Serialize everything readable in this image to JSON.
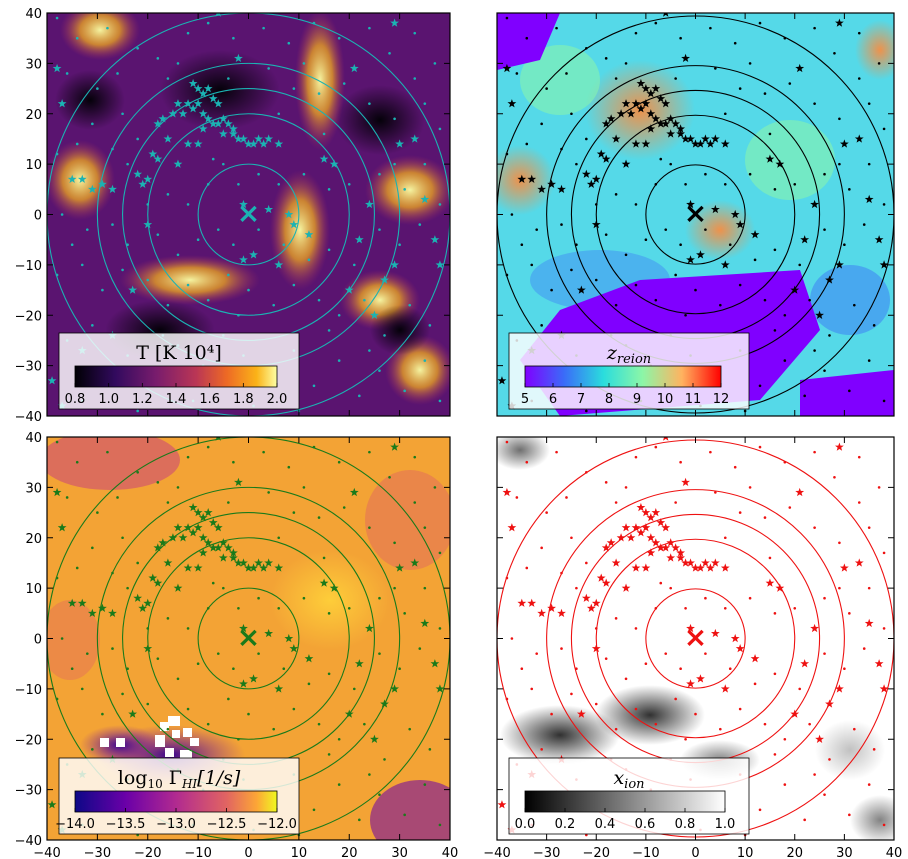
{
  "chart_data": [
    {
      "type": "heatmap",
      "id": "temperature",
      "colormap": "inferno",
      "colorbar": {
        "title": "T [K 10⁴]",
        "ticks": [
          "0.8",
          "1.0",
          "1.2",
          "1.4",
          "1.6",
          "1.8",
          "2.0"
        ],
        "range": [
          0.8,
          2.0
        ]
      },
      "overlay_color": "#1bb3b3",
      "xlim": [
        -40,
        40
      ],
      "ylim": [
        -40,
        40
      ],
      "xticks": [
        "−40",
        "−30",
        "−20",
        "−10",
        "0",
        "10",
        "20",
        "30",
        "40"
      ],
      "yticks": [
        "40",
        "30",
        "20",
        "10",
        "0",
        "−10",
        "−20",
        "−30",
        "−40"
      ],
      "center_marker": {
        "x": 0,
        "y": 0,
        "symbol": "×"
      },
      "circle_radii": [
        10,
        20,
        25,
        30,
        40
      ]
    },
    {
      "type": "heatmap",
      "id": "z_reion",
      "colormap": "rainbow",
      "colorbar": {
        "title": "z_reion",
        "ticks": [
          "5",
          "6",
          "7",
          "8",
          "9",
          "10",
          "11",
          "12"
        ],
        "range": [
          5,
          12
        ]
      },
      "overlay_color": "#000000",
      "xlim": [
        -40,
        40
      ],
      "ylim": [
        -40,
        40
      ],
      "center_marker": {
        "x": 0,
        "y": 0,
        "symbol": "×"
      },
      "circle_radii": [
        10,
        20,
        25,
        30,
        40
      ]
    },
    {
      "type": "heatmap",
      "id": "gamma_HI",
      "colormap": "plasma",
      "colorbar": {
        "title": "log₁₀ Γ_HI [1/s]",
        "ticks": [
          "−14.0",
          "−13.5",
          "−13.0",
          "−12.5",
          "−12.0"
        ],
        "range": [
          -14.0,
          -12.0
        ]
      },
      "overlay_color": "#1a7a1a",
      "xlim": [
        -40,
        40
      ],
      "ylim": [
        -40,
        40
      ],
      "center_marker": {
        "x": 0,
        "y": 0,
        "symbol": "×"
      },
      "circle_radii": [
        10,
        20,
        25,
        30,
        40
      ]
    },
    {
      "type": "heatmap",
      "id": "x_ion",
      "colormap": "gray",
      "colorbar": {
        "title": "x_ion",
        "ticks": [
          "0.0",
          "0.2",
          "0.4",
          "0.6",
          "0.8",
          "1.0"
        ],
        "range": [
          0.0,
          1.0
        ]
      },
      "overlay_color": "#ee1111",
      "xlim": [
        -40,
        40
      ],
      "ylim": [
        -40,
        40
      ],
      "center_marker": {
        "x": 0,
        "y": 0,
        "symbol": "×"
      },
      "circle_radii": [
        10,
        20,
        25,
        30,
        40
      ]
    }
  ],
  "stars": [
    [
      -38,
      29
    ],
    [
      -37,
      22
    ],
    [
      -35,
      7
    ],
    [
      -33,
      7
    ],
    [
      -31,
      5
    ],
    [
      -29,
      6
    ],
    [
      -27,
      5
    ],
    [
      -22,
      8
    ],
    [
      -21,
      6
    ],
    [
      -20,
      7
    ],
    [
      -14,
      10
    ],
    [
      -12,
      14
    ],
    [
      -10,
      14
    ],
    [
      -9,
      17
    ],
    [
      -7,
      18
    ],
    [
      -5,
      16
    ],
    [
      -3,
      17
    ],
    [
      -14,
      22
    ],
    [
      -13,
      20
    ],
    [
      -12,
      22
    ],
    [
      -11,
      21
    ],
    [
      -10,
      22
    ],
    [
      -9,
      20
    ],
    [
      -8,
      19
    ],
    [
      -11,
      26
    ],
    [
      -10,
      25
    ],
    [
      -9,
      24
    ],
    [
      -8,
      25
    ],
    [
      -7,
      23
    ],
    [
      -6,
      22
    ],
    [
      -6,
      18
    ],
    [
      -5,
      19
    ],
    [
      -4,
      18
    ],
    [
      -3,
      16
    ],
    [
      -2,
      15
    ],
    [
      -1,
      15
    ],
    [
      0,
      14
    ],
    [
      1,
      14
    ],
    [
      2,
      15
    ],
    [
      3,
      14
    ],
    [
      4,
      15
    ],
    [
      6,
      14
    ],
    [
      -15,
      20
    ],
    [
      -17,
      19
    ],
    [
      -18,
      18
    ],
    [
      -16,
      15
    ],
    [
      -19,
      12
    ],
    [
      -18,
      11
    ],
    [
      -1,
      2
    ],
    [
      8,
      0
    ],
    [
      4,
      1
    ],
    [
      9,
      -2
    ],
    [
      1,
      -8
    ],
    [
      -1,
      -9
    ],
    [
      6,
      -10
    ],
    [
      12,
      -4
    ],
    [
      15,
      11
    ],
    [
      17,
      10
    ],
    [
      20,
      -15
    ],
    [
      22,
      -5
    ],
    [
      24,
      2
    ],
    [
      25,
      -20
    ],
    [
      27,
      -13
    ],
    [
      29,
      -10
    ],
    [
      30,
      14
    ],
    [
      33,
      15
    ],
    [
      35,
      3
    ],
    [
      37,
      -5
    ],
    [
      38,
      -10
    ],
    [
      -20,
      -2
    ],
    [
      -23,
      -15
    ],
    [
      -27,
      -24
    ],
    [
      -28,
      -31
    ],
    [
      -33,
      -27
    ],
    [
      -39,
      -33
    ],
    [
      -37,
      -38
    ],
    [
      -6,
      40
    ],
    [
      -2,
      31
    ],
    [
      21,
      29
    ],
    [
      29,
      38
    ]
  ],
  "dots": [
    [
      -38,
      39
    ],
    [
      -34,
      35
    ],
    [
      -28,
      37
    ],
    [
      -22,
      33
    ],
    [
      -18,
      31
    ],
    [
      -12,
      36
    ],
    [
      -8,
      38
    ],
    [
      -3,
      35
    ],
    [
      3,
      37
    ],
    [
      8,
      34
    ],
    [
      13,
      38
    ],
    [
      18,
      35
    ],
    [
      24,
      37
    ],
    [
      28,
      32
    ],
    [
      33,
      36
    ],
    [
      37,
      30
    ],
    [
      -36,
      28
    ],
    [
      -30,
      25
    ],
    [
      -25,
      20
    ],
    [
      -22,
      15
    ],
    [
      -16,
      27
    ],
    [
      -4,
      27
    ],
    [
      4,
      29
    ],
    [
      9,
      25
    ],
    [
      14,
      24
    ],
    [
      19,
      26
    ],
    [
      24,
      22
    ],
    [
      29,
      19
    ],
    [
      35,
      22
    ],
    [
      38,
      17
    ],
    [
      -38,
      12
    ],
    [
      -34,
      14
    ],
    [
      -27,
      13
    ],
    [
      -24,
      10
    ],
    [
      -20,
      2
    ],
    [
      -16,
      4
    ],
    [
      -12,
      2
    ],
    [
      -8,
      6
    ],
    [
      -5,
      10
    ],
    [
      -2,
      6
    ],
    [
      2,
      8
    ],
    [
      6,
      6
    ],
    [
      11,
      8
    ],
    [
      16,
      5
    ],
    [
      20,
      6
    ],
    [
      26,
      8
    ],
    [
      31,
      5
    ],
    [
      35,
      10
    ],
    [
      -37,
      0
    ],
    [
      -32,
      -3
    ],
    [
      -27,
      -2
    ],
    [
      -24,
      -6
    ],
    [
      -18,
      -4
    ],
    [
      -14,
      -8
    ],
    [
      -10,
      -5
    ],
    [
      -6,
      -3
    ],
    [
      -3,
      -6
    ],
    [
      2,
      -3
    ],
    [
      7,
      -6
    ],
    [
      12,
      -9
    ],
    [
      16,
      -7
    ],
    [
      21,
      -10
    ],
    [
      26,
      -3
    ],
    [
      30,
      -6
    ],
    [
      34,
      -2
    ],
    [
      38,
      2
    ],
    [
      -38,
      -12
    ],
    [
      -33,
      -10
    ],
    [
      -29,
      -15
    ],
    [
      -25,
      -11
    ],
    [
      -20,
      -13
    ],
    [
      -16,
      -18
    ],
    [
      -12,
      -14
    ],
    [
      -8,
      -17
    ],
    [
      -4,
      -12
    ],
    [
      0,
      -15
    ],
    [
      5,
      -18
    ],
    [
      9,
      -14
    ],
    [
      14,
      -17
    ],
    [
      18,
      -20
    ],
    [
      23,
      -17
    ],
    [
      27,
      -24
    ],
    [
      32,
      -18
    ],
    [
      36,
      -22
    ],
    [
      -36,
      -25
    ],
    [
      -31,
      -22
    ],
    [
      -24,
      -28
    ],
    [
      -19,
      -33
    ],
    [
      -14,
      -26
    ],
    [
      -9,
      -30
    ],
    [
      -5,
      -24
    ],
    [
      -1,
      -28
    ],
    [
      4,
      -32
    ],
    [
      9,
      -27
    ],
    [
      13,
      -34
    ],
    [
      18,
      -29
    ],
    [
      22,
      -36
    ],
    [
      26,
      -31
    ],
    [
      31,
      -35
    ],
    [
      35,
      -29
    ],
    [
      38,
      -37
    ],
    [
      -33,
      -37
    ],
    [
      -22,
      -39
    ],
    [
      -11,
      -37
    ],
    [
      1,
      -38
    ],
    [
      10,
      -39
    ],
    [
      16,
      -23
    ],
    [
      -26,
      28
    ],
    [
      -14,
      30
    ],
    [
      11,
      30
    ],
    [
      -31,
      18
    ],
    [
      33,
      27
    ],
    [
      -7,
      11
    ],
    [
      6,
      20
    ],
    [
      15,
      16
    ],
    [
      -17,
      -24
    ],
    [
      24,
      -27
    ],
    [
      -2,
      -20
    ],
    [
      29,
      10
    ],
    [
      -35,
      -6
    ]
  ]
}
